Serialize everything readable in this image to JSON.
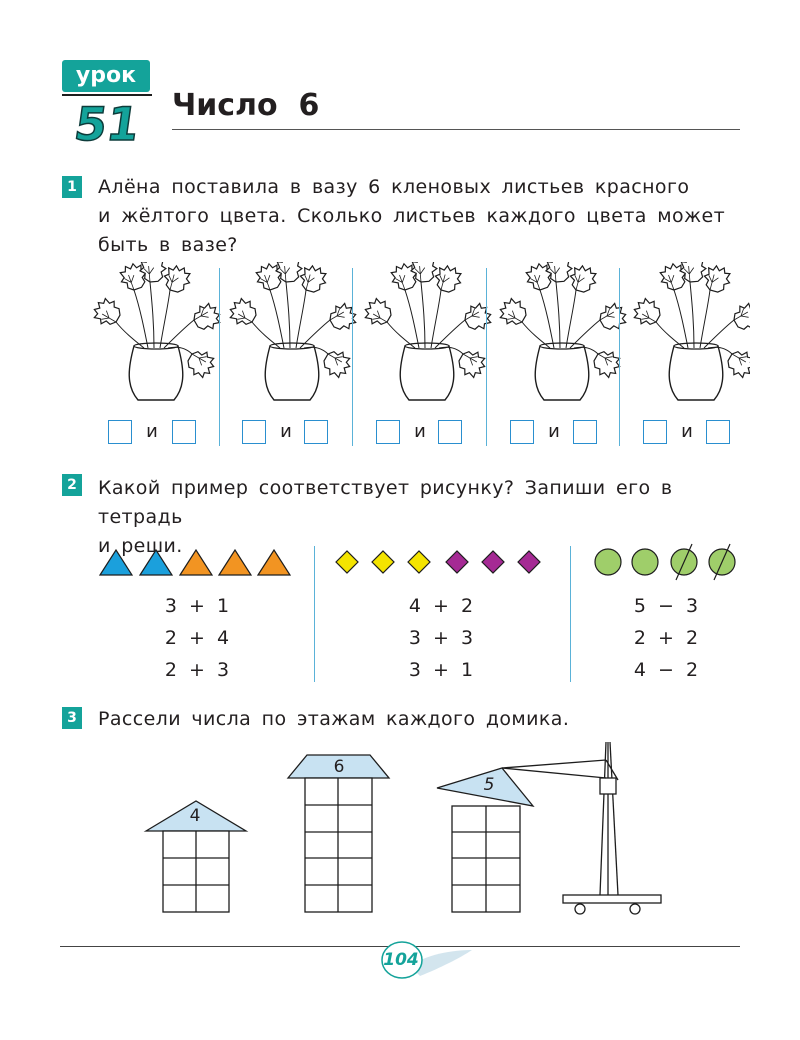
{
  "header": {
    "lesson_label": "урок",
    "lesson_number": "51",
    "title": "Число  6",
    "accent_color": "#14a39a"
  },
  "task1": {
    "number": "1",
    "lines": [
      "Алёна поставила в вазу 6 кленовых листьев красного",
      "и жёлтого цвета. Сколько листьев каждого цвета может",
      "быть в вазе?"
    ],
    "vase_count": 5,
    "and_label": "и",
    "icons": [
      "maple-leaf-vase-icon"
    ]
  },
  "task2": {
    "number": "2",
    "lines": [
      "Какой пример соответствует рисунку? Запиши его в тетрадь",
      "и реши."
    ],
    "groups": [
      {
        "shapes": [
          {
            "shape": "triangle",
            "color": "#1ba0dc"
          },
          {
            "shape": "triangle",
            "color": "#1ba0dc"
          },
          {
            "shape": "triangle",
            "color": "#f29422"
          },
          {
            "shape": "triangle",
            "color": "#f29422"
          },
          {
            "shape": "triangle",
            "color": "#f29422"
          }
        ],
        "expressions": [
          "3 + 1",
          "2 + 4",
          "2 + 3"
        ]
      },
      {
        "shapes": [
          {
            "shape": "diamond",
            "color": "#f4e400"
          },
          {
            "shape": "diamond",
            "color": "#f4e400"
          },
          {
            "shape": "diamond",
            "color": "#f4e400"
          },
          {
            "shape": "diamond",
            "color": "#a52a94"
          },
          {
            "shape": "diamond",
            "color": "#a52a94"
          },
          {
            "shape": "diamond",
            "color": "#a52a94"
          }
        ],
        "expressions": [
          "4 + 2",
          "3 + 3",
          "3 + 1"
        ]
      },
      {
        "shapes": [
          {
            "shape": "circle",
            "color": "#9fce6a",
            "crossed": false
          },
          {
            "shape": "circle",
            "color": "#9fce6a",
            "crossed": false
          },
          {
            "shape": "circle",
            "color": "#9fce6a",
            "crossed": true
          },
          {
            "shape": "circle",
            "color": "#9fce6a",
            "crossed": true
          }
        ],
        "expressions": [
          "5 − 3",
          "2 + 2",
          "4 − 2"
        ]
      }
    ]
  },
  "task3": {
    "number": "3",
    "text": "Рассели числа по этажам каждого домика.",
    "roof_color": "#c8e2f2",
    "houses": [
      {
        "label": "4",
        "floors": 3
      },
      {
        "label": "6",
        "floors": 5
      },
      {
        "label": "5",
        "floors": 4
      }
    ]
  },
  "footer": {
    "page_number": "104"
  }
}
